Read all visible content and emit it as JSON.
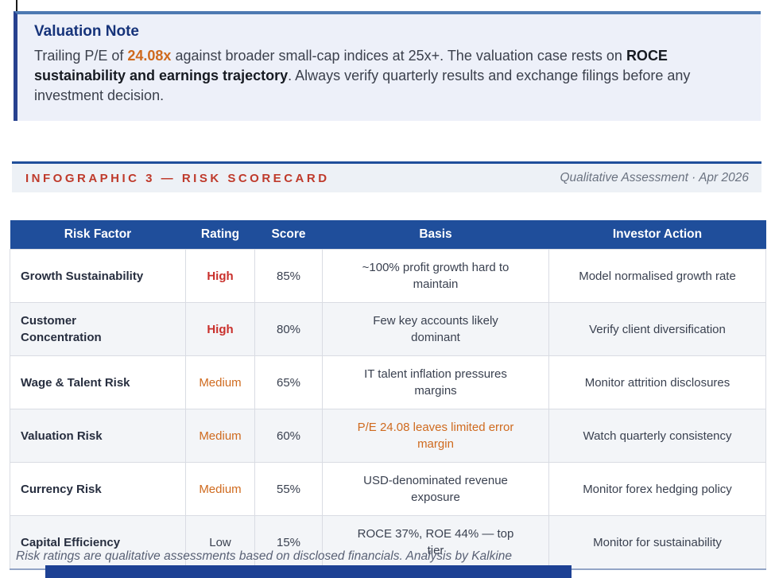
{
  "valuation_note": {
    "title": "Valuation Note",
    "body_prefix": "Trailing P/E of ",
    "pe_value": "24.08x",
    "body_mid": " against broader small-cap indices at 25x+. The valuation case rests on ",
    "bold_phrase": "ROCE sustainability and earnings trajectory",
    "body_suffix": ". Always verify quarterly results and exchange filings before any investment decision."
  },
  "section_header": {
    "title": "INFOGRAPHIC 3 — RISK SCORECARD",
    "meta": "Qualitative Assessment · Apr 2026"
  },
  "table": {
    "columns": [
      "Risk Factor",
      "Rating",
      "Score",
      "Basis",
      "Investor Action"
    ],
    "rows": [
      {
        "factor": "Growth Sustainability",
        "rating": "High",
        "rating_level": "high",
        "score": "85%",
        "basis": "~100% profit growth hard to maintain",
        "basis_highlight": false,
        "action": "Model normalised growth rate"
      },
      {
        "factor": "Customer Concentration",
        "rating": "High",
        "rating_level": "high",
        "score": "80%",
        "basis": "Few key accounts likely dominant",
        "basis_highlight": false,
        "action": "Verify client diversification"
      },
      {
        "factor": "Wage & Talent Risk",
        "rating": "Medium",
        "rating_level": "medium",
        "score": "65%",
        "basis": "IT talent inflation pressures margins",
        "basis_highlight": false,
        "action": "Monitor attrition disclosures"
      },
      {
        "factor": "Valuation Risk",
        "rating": "Medium",
        "rating_level": "medium",
        "score": "60%",
        "basis": "P/E 24.08 leaves limited error margin",
        "basis_highlight": true,
        "action": "Watch quarterly consistency"
      },
      {
        "factor": "Currency Risk",
        "rating": "Medium",
        "rating_level": "medium",
        "score": "55%",
        "basis": "USD-denominated revenue exposure",
        "basis_highlight": false,
        "action": "Monitor forex hedging policy"
      },
      {
        "factor": "Capital Efficiency",
        "rating": "Low",
        "rating_level": "low",
        "score": "15%",
        "basis": "ROCE 37%, ROE 44% — top tier",
        "basis_highlight": false,
        "action": "Monitor for sustainability"
      }
    ]
  },
  "footer": {
    "note": "Risk ratings are qualitative assessments based on disclosed financials. Analysis by Kalkine"
  },
  "colors": {
    "header_blue": "#1f4e9b",
    "accent_red": "#bf3a2b",
    "rating_high_red": "#c9302c",
    "accent_orange": "#cf6a1e",
    "note_bg": "#edf0f9",
    "note_left_border": "#27418f",
    "note_top_rule": "#4d79b2",
    "band_bg": "#edf1f6",
    "zebra_row": "#f3f5f8",
    "bottom_bar": "#1d4194"
  }
}
